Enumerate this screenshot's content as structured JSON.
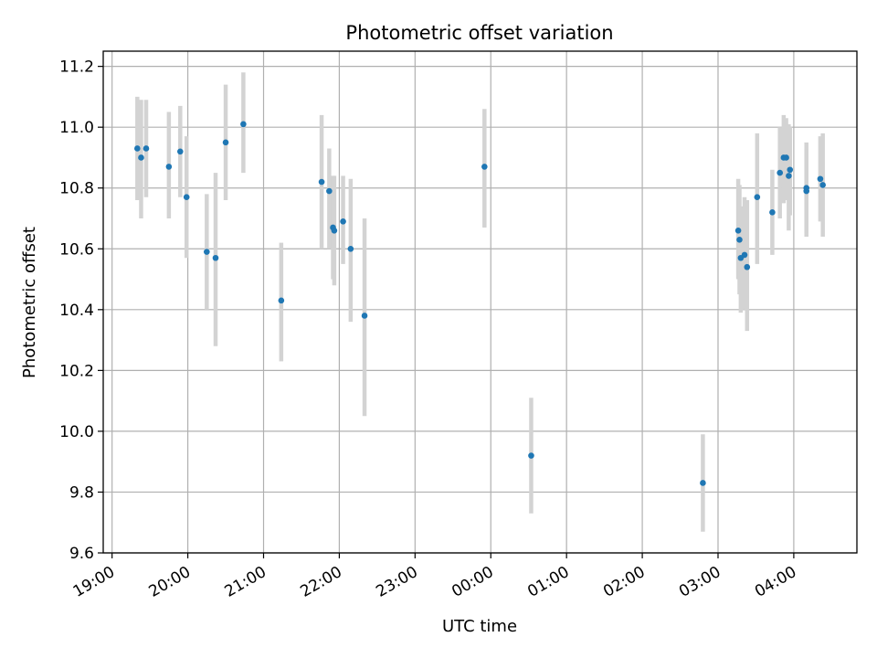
{
  "chart_data": {
    "type": "scatter",
    "title": "Photometric offset variation",
    "xlabel": "UTC time",
    "ylabel": "Photometric offset",
    "xlim": [
      "19:00",
      "04:50"
    ],
    "ylim": [
      9.6,
      11.25
    ],
    "grid": true,
    "legend": "none",
    "x_ticks": [
      {
        "t": "19:00",
        "label": "19:00"
      },
      {
        "t": "20:00",
        "label": "20:00"
      },
      {
        "t": "21:00",
        "label": "21:00"
      },
      {
        "t": "22:00",
        "label": "22:00"
      },
      {
        "t": "23:00",
        "label": "23:00"
      },
      {
        "t": "00:00",
        "label": "00:00"
      },
      {
        "t": "01:00",
        "label": "01:00"
      },
      {
        "t": "02:00",
        "label": "02:00"
      },
      {
        "t": "03:00",
        "label": "03:00"
      },
      {
        "t": "04:00",
        "label": "04:00"
      }
    ],
    "y_ticks": [
      {
        "v": 9.6,
        "label": "9.6"
      },
      {
        "v": 9.8,
        "label": "9.8"
      },
      {
        "v": 10.0,
        "label": "10.0"
      },
      {
        "v": 10.2,
        "label": "10.2"
      },
      {
        "v": 10.4,
        "label": "10.4"
      },
      {
        "v": 10.6,
        "label": "10.6"
      },
      {
        "v": 10.8,
        "label": "10.8"
      },
      {
        "v": 11.0,
        "label": "11.0"
      },
      {
        "v": 11.2,
        "label": "11.2"
      }
    ],
    "colors": {
      "point": "#1f77b4",
      "errorbar": "#d3d3d3",
      "grid": "#b0b0b0"
    },
    "points": [
      {
        "t": "19:20",
        "y": 10.93,
        "lo": 10.76,
        "hi": 11.1
      },
      {
        "t": "19:23",
        "y": 10.9,
        "lo": 10.7,
        "hi": 11.09
      },
      {
        "t": "19:27",
        "y": 10.93,
        "lo": 10.77,
        "hi": 11.09
      },
      {
        "t": "19:45",
        "y": 10.87,
        "lo": 10.7,
        "hi": 11.05
      },
      {
        "t": "19:54",
        "y": 10.92,
        "lo": 10.77,
        "hi": 11.07
      },
      {
        "t": "19:59",
        "y": 10.77,
        "lo": 10.57,
        "hi": 10.97
      },
      {
        "t": "20:15",
        "y": 10.59,
        "lo": 10.4,
        "hi": 10.78
      },
      {
        "t": "20:22",
        "y": 10.57,
        "lo": 10.28,
        "hi": 10.85
      },
      {
        "t": "20:30",
        "y": 10.95,
        "lo": 10.76,
        "hi": 11.14
      },
      {
        "t": "20:44",
        "y": 11.01,
        "lo": 10.85,
        "hi": 11.18
      },
      {
        "t": "21:14",
        "y": 10.43,
        "lo": 10.23,
        "hi": 10.62
      },
      {
        "t": "21:46",
        "y": 10.82,
        "lo": 10.6,
        "hi": 11.04
      },
      {
        "t": "21:52",
        "y": 10.79,
        "lo": 10.6,
        "hi": 10.93
      },
      {
        "t": "21:55",
        "y": 10.67,
        "lo": 10.5,
        "hi": 10.84
      },
      {
        "t": "21:56",
        "y": 10.66,
        "lo": 10.48,
        "hi": 10.84
      },
      {
        "t": "22:03",
        "y": 10.69,
        "lo": 10.55,
        "hi": 10.84
      },
      {
        "t": "22:09",
        "y": 10.6,
        "lo": 10.36,
        "hi": 10.83
      },
      {
        "t": "22:20",
        "y": 10.38,
        "lo": 10.05,
        "hi": 10.7
      },
      {
        "t": "23:55",
        "y": 10.87,
        "lo": 10.67,
        "hi": 11.06
      },
      {
        "t": "00:32",
        "y": 9.92,
        "lo": 9.73,
        "hi": 10.11
      },
      {
        "t": "02:48",
        "y": 9.83,
        "lo": 9.67,
        "hi": 9.99
      },
      {
        "t": "03:16",
        "y": 10.66,
        "lo": 10.5,
        "hi": 10.83
      },
      {
        "t": "03:17",
        "y": 10.63,
        "lo": 10.45,
        "hi": 10.81
      },
      {
        "t": "03:18",
        "y": 10.57,
        "lo": 10.39,
        "hi": 10.74
      },
      {
        "t": "03:21",
        "y": 10.58,
        "lo": 10.4,
        "hi": 10.77
      },
      {
        "t": "03:23",
        "y": 10.54,
        "lo": 10.33,
        "hi": 10.76
      },
      {
        "t": "03:31",
        "y": 10.77,
        "lo": 10.55,
        "hi": 10.98
      },
      {
        "t": "03:43",
        "y": 10.72,
        "lo": 10.58,
        "hi": 10.86
      },
      {
        "t": "03:49",
        "y": 10.85,
        "lo": 10.7,
        "hi": 11.0
      },
      {
        "t": "03:52",
        "y": 10.9,
        "lo": 10.75,
        "hi": 11.04
      },
      {
        "t": "03:54",
        "y": 10.9,
        "lo": 10.76,
        "hi": 11.03
      },
      {
        "t": "03:56",
        "y": 10.84,
        "lo": 10.66,
        "hi": 11.01
      },
      {
        "t": "03:57",
        "y": 10.86,
        "lo": 10.71,
        "hi": 11.0
      },
      {
        "t": "04:10",
        "y": 10.8,
        "lo": 10.64,
        "hi": 10.95
      },
      {
        "t": "04:10",
        "y": 10.79,
        "lo": 10.65,
        "hi": 10.93
      },
      {
        "t": "04:21",
        "y": 10.83,
        "lo": 10.69,
        "hi": 10.97
      },
      {
        "t": "04:23",
        "y": 10.81,
        "lo": 10.64,
        "hi": 10.98
      }
    ]
  }
}
